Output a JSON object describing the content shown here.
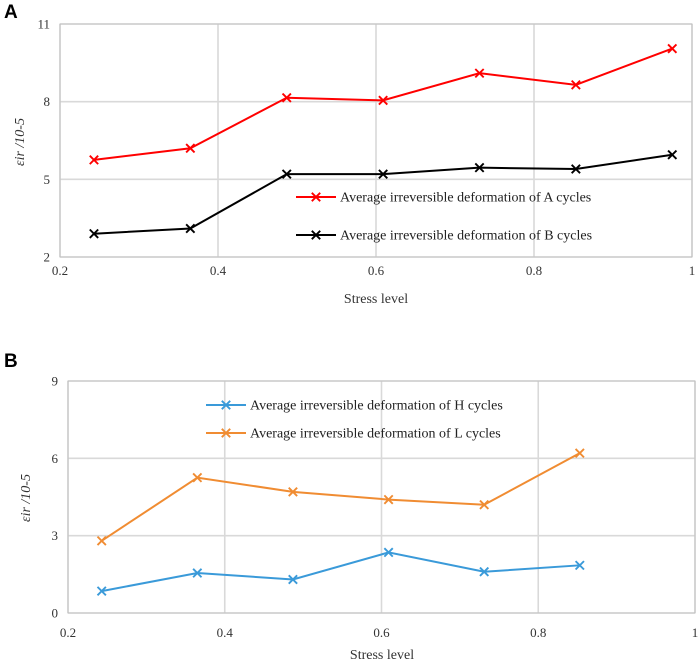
{
  "chart_data": [
    {
      "panel": "A",
      "type": "line",
      "title": "",
      "xlabel": "Stress level",
      "ylabel": "εir /10-5",
      "xlim": [
        0.2,
        1.0
      ],
      "ylim": [
        2,
        11
      ],
      "xticks": [
        0.2,
        0.4,
        0.6,
        0.8,
        1
      ],
      "xtick_labels": [
        "0.2",
        "0.4",
        "0.6",
        "0.8",
        "1"
      ],
      "yticks": [
        2,
        5,
        8,
        11
      ],
      "ytick_labels": [
        "2",
        "5",
        "8",
        "11"
      ],
      "grid": true,
      "legend_position": "bottom-right",
      "x": [
        0.243,
        0.365,
        0.487,
        0.609,
        0.731,
        0.853,
        0.975
      ],
      "series": [
        {
          "name": "Average irreversible deformation of A cycles",
          "color": "#ff0000",
          "values": [
            5.75,
            6.2,
            8.15,
            8.05,
            9.1,
            8.65,
            10.05
          ]
        },
        {
          "name": "Average irreversible deformation of B cycles",
          "color": "#000000",
          "values": [
            2.9,
            3.1,
            5.2,
            5.2,
            5.45,
            5.4,
            5.95
          ]
        }
      ]
    },
    {
      "panel": "B",
      "type": "line",
      "title": "",
      "xlabel": "Stress level",
      "ylabel": "εir /10-5",
      "xlim": [
        0.2,
        1.0
      ],
      "ylim": [
        0,
        9
      ],
      "xticks": [
        0.2,
        0.4,
        0.6,
        0.8,
        1
      ],
      "xtick_labels": [
        "0.2",
        "0.4",
        "0.6",
        "0.8",
        "1"
      ],
      "yticks": [
        0,
        3,
        6,
        9
      ],
      "ytick_labels": [
        "0",
        "3",
        "6",
        "9"
      ],
      "grid": true,
      "legend_position": "top-center",
      "x": [
        0.243,
        0.365,
        0.487,
        0.609,
        0.731,
        0.853
      ],
      "series": [
        {
          "name": "Average irreversible deformation of H cycles",
          "color": "#3a9ad9",
          "values": [
            0.85,
            1.55,
            1.3,
            2.35,
            1.6,
            1.85
          ]
        },
        {
          "name": "Average irreversible deformation of L cycles",
          "color": "#f08c32",
          "values": [
            2.8,
            5.25,
            4.7,
            4.4,
            4.2,
            6.2
          ]
        }
      ]
    }
  ]
}
